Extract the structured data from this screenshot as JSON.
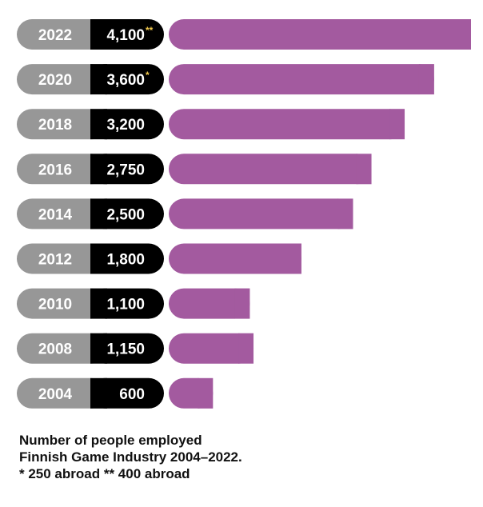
{
  "chart_data": {
    "type": "bar",
    "orientation": "horizontal",
    "categories": [
      "2022",
      "2020",
      "2018",
      "2016",
      "2014",
      "2012",
      "2010",
      "2008",
      "2004"
    ],
    "values": [
      4100,
      3600,
      3200,
      2750,
      2500,
      1800,
      1100,
      1150,
      600
    ],
    "value_labels": [
      "4,100",
      "3,600",
      "3,200",
      "2,750",
      "2,500",
      "1,800",
      "1,100",
      "1,150",
      "600"
    ],
    "value_marks": [
      "**",
      "*",
      "",
      "",
      "",
      "",
      "",
      "",
      ""
    ],
    "colors": {
      "bar": "#a35a9f",
      "year_pill": "#979797",
      "value_pill": "#000000",
      "mark": "#f2c94c"
    },
    "caption": [
      "Number of people employed",
      "Finnish Game Industry 2004–2022.",
      "* 250 abroad  ** 400 abroad"
    ]
  }
}
